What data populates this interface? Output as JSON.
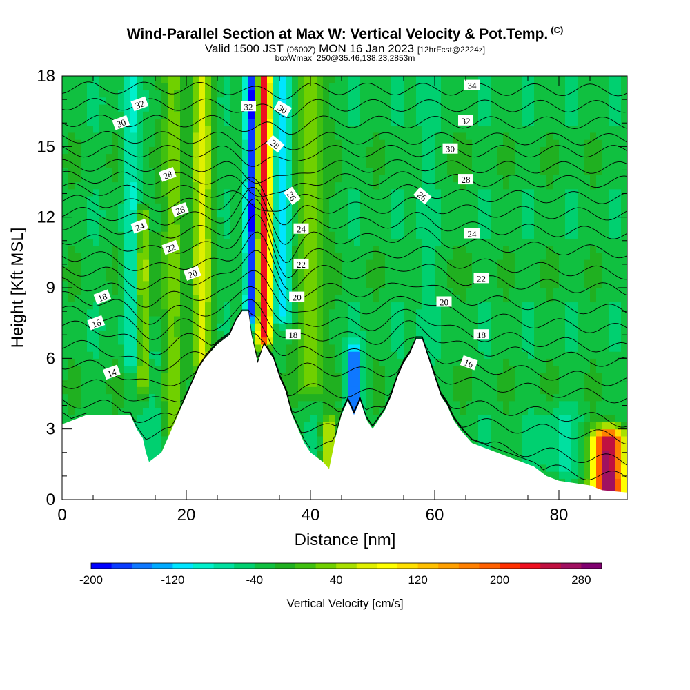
{
  "chart_data": {
    "type": "heatmap",
    "title": "Wind-Parallel Section at Max W: Vertical Velocity & Pot.Temp.",
    "title_mark": "(C)",
    "subtitle": {
      "valid": "Valid 1500 JST",
      "utc": "(0600Z)",
      "date": "MON 16 Jan 2023",
      "forecast": "[12hrFcst@2224z]"
    },
    "subtitle2": "boxWmax=250@35.46,138.23,2853m",
    "xlabel": "Distance [nm]",
    "ylabel": "Height [Kft MSL]",
    "xlim": [
      0,
      91
    ],
    "ylim": [
      0,
      18
    ],
    "x_ticks": [
      0,
      20,
      40,
      60,
      80
    ],
    "y_ticks": [
      0,
      3,
      6,
      9,
      12,
      15,
      18
    ],
    "x_tick_labels": [
      "0",
      "20",
      "40",
      "60",
      "80"
    ],
    "y_tick_labels": [
      "0",
      "3",
      "6",
      "9",
      "12",
      "15",
      "18"
    ],
    "colorbar": {
      "label": "Vertical Velocity [cm/s]",
      "tick_labels": [
        "-200",
        "-120",
        "-40",
        "40",
        "120",
        "200",
        "280"
      ],
      "tick_values": [
        -200,
        -120,
        -40,
        40,
        120,
        200,
        280
      ],
      "bins": [
        -200,
        300
      ],
      "step": 20,
      "colors": [
        "#0000ff",
        "#0a3cff",
        "#0f78ff",
        "#00aaff",
        "#00e5ff",
        "#00f0cc",
        "#00e0a0",
        "#00d070",
        "#10c040",
        "#20b020",
        "#40c010",
        "#70d000",
        "#a8e000",
        "#e0f000",
        "#ffff00",
        "#ffe000",
        "#ffc000",
        "#ffa000",
        "#ff8000",
        "#ff6000",
        "#ff3000",
        "#ee1020",
        "#c01040",
        "#a01060",
        "#800070"
      ]
    },
    "velocity_features": [
      {
        "x": 30.5,
        "ylo": 8,
        "yhi": 18,
        "w": 1.0,
        "value": -200
      },
      {
        "x": 32.5,
        "ylo": 7,
        "yhi": 18,
        "w": 1.2,
        "value": 240
      },
      {
        "x": 35.5,
        "ylo": 8,
        "yhi": 18,
        "w": 1.4,
        "value": -120
      },
      {
        "x": 22.5,
        "ylo": 6,
        "yhi": 18,
        "w": 1.7,
        "value": 60
      },
      {
        "x": 18,
        "ylo": 3,
        "yhi": 18,
        "w": 1.5,
        "value": 40
      },
      {
        "x": 13,
        "ylo": 5,
        "yhi": 12,
        "w": 1.0,
        "value": 60
      },
      {
        "x": 11,
        "ylo": 6,
        "yhi": 18,
        "w": 1.3,
        "value": -80
      },
      {
        "x": 15,
        "ylo": 2,
        "yhi": 6,
        "w": 1.3,
        "value": -60
      },
      {
        "x": 40,
        "ylo": 5,
        "yhi": 18,
        "w": 2.0,
        "value": 40
      },
      {
        "x": 58.5,
        "ylo": 6,
        "yhi": 18,
        "w": 1.4,
        "value": -60
      },
      {
        "x": 62,
        "ylo": 6,
        "yhi": 18,
        "w": 1.3,
        "value": -20
      },
      {
        "x": 47,
        "ylo": 3,
        "yhi": 6,
        "w": 1.2,
        "value": -160
      },
      {
        "x": 43,
        "ylo": 1.5,
        "yhi": 3,
        "w": 1.2,
        "value": 60
      },
      {
        "x": 88,
        "ylo": 0.5,
        "yhi": 2.5,
        "w": 2.5,
        "value": 280
      },
      {
        "x": 80,
        "ylo": 1.5,
        "yhi": 3.5,
        "w": 3.0,
        "value": -60
      }
    ],
    "terrain": [
      [
        0,
        3.2
      ],
      [
        4,
        3.6
      ],
      [
        11,
        3.6
      ],
      [
        12,
        3.0
      ],
      [
        13,
        2.6
      ],
      [
        13.5,
        2.0
      ],
      [
        14,
        1.6
      ],
      [
        16,
        2.0
      ],
      [
        17,
        2.6
      ],
      [
        18,
        3.2
      ],
      [
        19,
        3.8
      ],
      [
        20,
        4.4
      ],
      [
        21,
        5.0
      ],
      [
        22,
        5.6
      ],
      [
        23,
        6.0
      ],
      [
        25,
        6.6
      ],
      [
        27,
        7.0
      ],
      [
        28,
        7.6
      ],
      [
        29,
        8.0
      ],
      [
        30,
        8.0
      ],
      [
        30.5,
        7.0
      ],
      [
        31.5,
        5.8
      ],
      [
        32.5,
        6.6
      ],
      [
        34,
        6.0
      ],
      [
        35,
        5.2
      ],
      [
        36,
        4.6
      ],
      [
        37,
        3.6
      ],
      [
        38,
        3.0
      ],
      [
        39,
        2.4
      ],
      [
        40,
        2.0
      ],
      [
        41,
        1.8
      ],
      [
        42,
        1.6
      ],
      [
        43,
        1.3
      ],
      [
        44,
        2.6
      ],
      [
        45,
        3.6
      ],
      [
        46,
        4.2
      ],
      [
        47,
        3.6
      ],
      [
        48,
        4.2
      ],
      [
        49,
        3.4
      ],
      [
        50,
        3.0
      ],
      [
        51,
        3.4
      ],
      [
        52,
        3.8
      ],
      [
        53,
        4.4
      ],
      [
        54,
        5.2
      ],
      [
        55,
        5.8
      ],
      [
        56,
        6.2
      ],
      [
        57,
        6.8
      ],
      [
        58,
        6.8
      ],
      [
        59,
        6.0
      ],
      [
        60,
        5.2
      ],
      [
        61,
        4.4
      ],
      [
        62,
        4.0
      ],
      [
        63,
        3.4
      ],
      [
        64,
        3.0
      ],
      [
        65,
        2.7
      ],
      [
        66,
        2.4
      ],
      [
        68,
        2.2
      ],
      [
        70,
        2.0
      ],
      [
        72,
        1.8
      ],
      [
        74,
        1.6
      ],
      [
        76,
        1.4
      ],
      [
        78,
        1.0
      ],
      [
        80,
        0.8
      ],
      [
        85,
        0.6
      ],
      [
        87,
        0.4
      ],
      [
        91,
        0.3
      ]
    ],
    "isentropes": [
      {
        "value": 12,
        "h0": 3.5,
        "h91": 0.9,
        "label": ""
      },
      {
        "value": 13,
        "h0": 4.2,
        "h91": 1.6,
        "label": ""
      },
      {
        "value": 14,
        "h0": 5.0,
        "h91": 2.6,
        "label": "14",
        "lx": 8,
        "ly": 5.4
      },
      {
        "value": 15,
        "h0": 5.8,
        "h91": 3.3,
        "label": ""
      },
      {
        "value": 16,
        "h0": 6.6,
        "h91": 4.3,
        "label": "16",
        "lx": 5.5,
        "ly": 7.5
      },
      {
        "value": 17,
        "h0": 7.4,
        "h91": 5.0,
        "label": ""
      },
      {
        "value": 18,
        "h0": 8.0,
        "h91": 5.8,
        "label": "18",
        "lx": 6.5,
        "ly": 8.6
      },
      {
        "value": 19,
        "h0": 8.6,
        "h91": 6.4,
        "label": ""
      },
      {
        "value": 20,
        "h0": 9.2,
        "h91": 7.2,
        "label": "20",
        "lx": 21,
        "ly": 9.6
      },
      {
        "value": 21,
        "h0": 9.8,
        "h91": 8.0,
        "label": ""
      },
      {
        "value": 22,
        "h0": 10.4,
        "h91": 8.9,
        "label": "22",
        "lx": 17.5,
        "ly": 10.7
      },
      {
        "value": 23,
        "h0": 11.1,
        "h91": 9.6,
        "label": ""
      },
      {
        "value": 24,
        "h0": 11.7,
        "h91": 10.5,
        "label": "24",
        "lx": 12.5,
        "ly": 11.6
      },
      {
        "value": 25,
        "h0": 12.2,
        "h91": 11.3,
        "label": ""
      },
      {
        "value": 26,
        "h0": 12.7,
        "h91": 12.1,
        "label": "26",
        "lx": 19,
        "ly": 12.3
      },
      {
        "value": 27,
        "h0": 13.2,
        "h91": 12.8,
        "label": ""
      },
      {
        "value": 28,
        "h0": 13.7,
        "h91": 13.5,
        "label": "28",
        "lx": 17,
        "ly": 13.8
      },
      {
        "value": 29,
        "h0": 14.2,
        "h91": 14.1,
        "label": ""
      },
      {
        "value": 30,
        "h0": 14.8,
        "h91": 14.8,
        "label": "30",
        "lx": 9.5,
        "ly": 16.0
      },
      {
        "value": 31,
        "h0": 15.4,
        "h91": 15.3,
        "label": ""
      },
      {
        "value": 32,
        "h0": 16.1,
        "h91": 16.0,
        "label": "32",
        "lx": 12.5,
        "ly": 16.8
      },
      {
        "value": 33,
        "h0": 16.8,
        "h91": 16.7,
        "label": ""
      },
      {
        "value": 34,
        "h0": 17.5,
        "h91": 17.4,
        "label": ""
      }
    ],
    "contour_labels": [
      {
        "text": "32",
        "x": 30,
        "y": 16.7,
        "rot": 0
      },
      {
        "text": "30",
        "x": 35.5,
        "y": 16.6,
        "rot": 30
      },
      {
        "text": "28",
        "x": 34.3,
        "y": 15.1,
        "rot": 40
      },
      {
        "text": "26",
        "x": 37,
        "y": 12.9,
        "rot": 55
      },
      {
        "text": "24",
        "x": 38.5,
        "y": 11.5,
        "rot": 0
      },
      {
        "text": "22",
        "x": 38.5,
        "y": 10.0,
        "rot": 0
      },
      {
        "text": "20",
        "x": 37.8,
        "y": 8.6,
        "rot": 0
      },
      {
        "text": "18",
        "x": 37.2,
        "y": 7.0,
        "rot": 0
      },
      {
        "text": "34",
        "x": 66,
        "y": 17.6,
        "rot": 0
      },
      {
        "text": "32",
        "x": 65,
        "y": 16.1,
        "rot": 0
      },
      {
        "text": "30",
        "x": 62.5,
        "y": 14.9,
        "rot": 0
      },
      {
        "text": "28",
        "x": 65,
        "y": 13.6,
        "rot": 0
      },
      {
        "text": "26",
        "x": 58,
        "y": 12.9,
        "rot": 40
      },
      {
        "text": "24",
        "x": 66,
        "y": 11.3,
        "rot": 0
      },
      {
        "text": "22",
        "x": 67.5,
        "y": 9.4,
        "rot": 0
      },
      {
        "text": "20",
        "x": 61.5,
        "y": 8.4,
        "rot": 0
      },
      {
        "text": "18",
        "x": 67.5,
        "y": 7.0,
        "rot": 0
      },
      {
        "text": "16",
        "x": 65.5,
        "y": 5.8,
        "rot": 20
      }
    ]
  }
}
